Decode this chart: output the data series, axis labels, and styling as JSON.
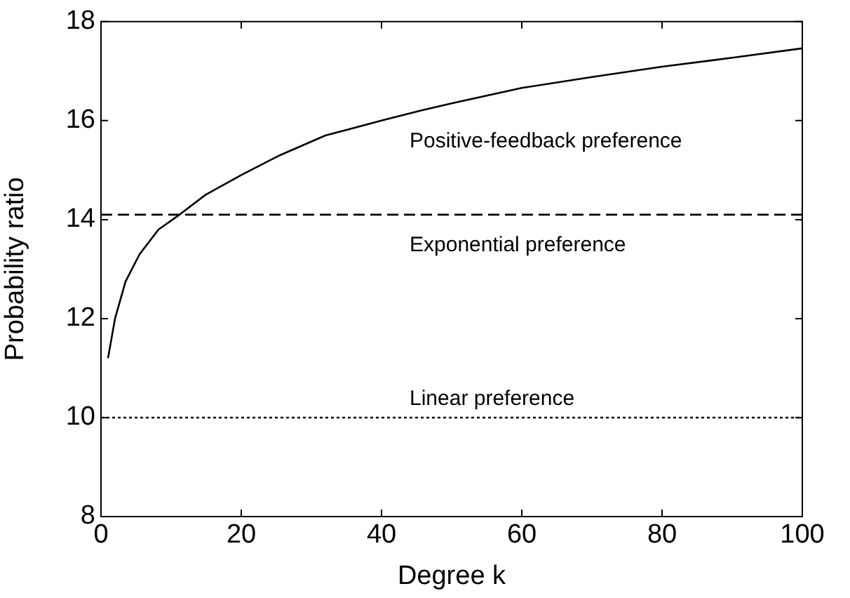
{
  "chart_data": {
    "type": "line",
    "xlabel": "Degree k",
    "ylabel": "Probability ratio",
    "xlim": [
      0,
      100
    ],
    "xticks": [
      0,
      20,
      40,
      60,
      80,
      100
    ],
    "ylim": [
      8,
      18
    ],
    "yticks": [
      8,
      10,
      12,
      14,
      16,
      18
    ],
    "series": [
      {
        "name": "Positive-feedback preference",
        "color": "#000000",
        "x": [
          1,
          2,
          3.5,
          5.5,
          8.2,
          11.2,
          14.9,
          20,
          25.5,
          32,
          40,
          45.5,
          50,
          60,
          70,
          80,
          90,
          100
        ],
        "values": [
          11.2,
          12.0,
          12.75,
          13.3,
          13.8,
          14.1,
          14.5,
          14.9,
          15.3,
          15.7,
          16.0,
          16.2,
          16.35,
          16.66,
          16.88,
          17.09,
          17.27,
          17.46
        ]
      }
    ],
    "ref_lines": [
      {
        "axis": "y",
        "value": 14.1,
        "label": "Exponential preference",
        "color": "#000000",
        "line_style": "dashed"
      },
      {
        "axis": "y",
        "value": 10,
        "label": "Linear preference",
        "color": "#000000",
        "line_style": "dotted"
      }
    ],
    "grid": false,
    "legend": false,
    "marker": "none",
    "line_style": "solid"
  }
}
